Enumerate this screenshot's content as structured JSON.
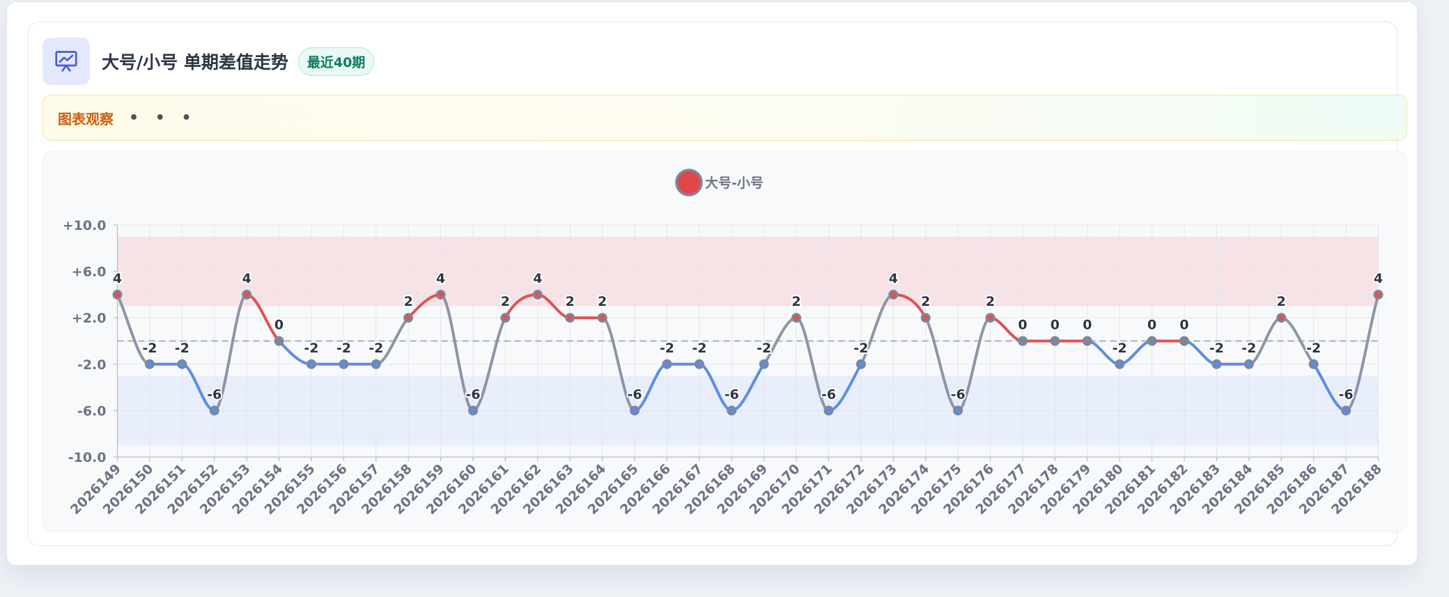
{
  "header": {
    "title": "大号/小号 单期差值走势",
    "badge": "最近40期",
    "icon": "presentation-chart-icon"
  },
  "observation": {
    "label": "图表观察",
    "text": "• • •"
  },
  "chart_data": {
    "type": "line",
    "title": "",
    "xlabel": "",
    "ylabel": "",
    "legend": {
      "position": "top",
      "entries": [
        "大号-小号"
      ]
    },
    "series": [
      {
        "name": "大号-小号",
        "values": [
          4,
          -2,
          -2,
          -6,
          4,
          0,
          -2,
          -2,
          -2,
          2,
          4,
          -6,
          2,
          4,
          2,
          2,
          -6,
          -2,
          -2,
          -6,
          -2,
          2,
          -6,
          -2,
          4,
          2,
          -6,
          2,
          0,
          0,
          0,
          -2,
          0,
          0,
          -2,
          -2,
          2,
          -2,
          -6,
          4
        ]
      }
    ],
    "categories": [
      "2026149",
      "2026150",
      "2026151",
      "2026152",
      "2026153",
      "2026154",
      "2026155",
      "2026156",
      "2026157",
      "2026158",
      "2026159",
      "2026160",
      "2026161",
      "2026162",
      "2026163",
      "2026164",
      "2026165",
      "2026166",
      "2026167",
      "2026168",
      "2026169",
      "2026170",
      "2026171",
      "2026172",
      "2026173",
      "2026174",
      "2026175",
      "2026176",
      "2026177",
      "2026178",
      "2026179",
      "2026180",
      "2026181",
      "2026182",
      "2026183",
      "2026184",
      "2026185",
      "2026186",
      "2026187",
      "2026188"
    ],
    "y_ticks": [
      10,
      6,
      2,
      -2,
      -6,
      -10
    ],
    "y_tick_labels": [
      "+10.0",
      "+6.0",
      "+2.0",
      "-2.0",
      "-6.0",
      "-10.0"
    ],
    "ylim": [
      -10,
      10
    ],
    "reference_line": 0,
    "bands": [
      {
        "from": 3,
        "to": 9,
        "color": "#f7e3e6"
      },
      {
        "from": -9,
        "to": -3,
        "color": "#e8eefb"
      }
    ],
    "grid": true,
    "colors": {
      "positive": "#e05252",
      "negative": "#5b8de6",
      "neutral": "#8b95a7",
      "marker": "#7d8799",
      "legend_fill": "#e04848"
    }
  }
}
